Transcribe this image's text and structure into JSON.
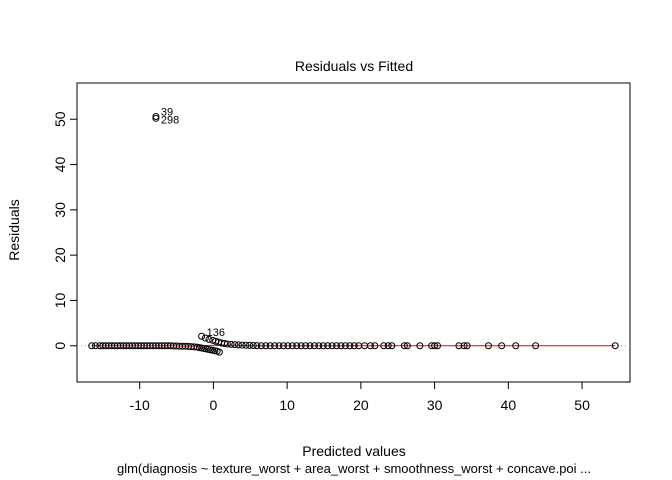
{
  "chart_data": {
    "type": "scatter",
    "title": "Residuals vs Fitted",
    "xlabel": "Predicted values",
    "ylabel": "Residuals",
    "subtitle": "glm(diagnosis ~ texture_worst + area_worst + smoothness_worst + concave.poi ...",
    "xlim": [
      -18.5,
      56.5
    ],
    "ylim": [
      -8,
      58
    ],
    "xticks": [
      -10,
      0,
      10,
      20,
      30,
      40,
      50
    ],
    "yticks": [
      0,
      10,
      20,
      30,
      40,
      50
    ],
    "grid": false,
    "reference_line": {
      "y": 0,
      "style": "dotted",
      "color": "#999999"
    },
    "smooth_color": "#ff0000",
    "point_color": "#000000",
    "labeled_points": [
      {
        "label": "39",
        "x": -7.8,
        "y": 50.6
      },
      {
        "label": "298",
        "x": -7.8,
        "y": 50.2
      },
      {
        "label": "136",
        "x": -1.6,
        "y": 2.1
      }
    ],
    "points": [
      {
        "x": -7.8,
        "y": 50.6
      },
      {
        "x": -7.8,
        "y": 50.2
      },
      {
        "x": -16.5,
        "y": 0.0
      },
      {
        "x": -16.0,
        "y": 0.0
      },
      {
        "x": -15.4,
        "y": 0.0
      },
      {
        "x": -15.0,
        "y": 0.0
      },
      {
        "x": -14.6,
        "y": 0.0
      },
      {
        "x": -14.2,
        "y": 0.0
      },
      {
        "x": -13.8,
        "y": 0.0
      },
      {
        "x": -13.4,
        "y": 0.0
      },
      {
        "x": -13.0,
        "y": 0.0
      },
      {
        "x": -12.6,
        "y": 0.0
      },
      {
        "x": -12.2,
        "y": 0.0
      },
      {
        "x": -11.8,
        "y": 0.0
      },
      {
        "x": -11.4,
        "y": 0.0
      },
      {
        "x": -11.0,
        "y": 0.0
      },
      {
        "x": -10.6,
        "y": 0.0
      },
      {
        "x": -10.2,
        "y": 0.0
      },
      {
        "x": -9.8,
        "y": 0.0
      },
      {
        "x": -9.4,
        "y": 0.0
      },
      {
        "x": -9.0,
        "y": 0.0
      },
      {
        "x": -8.6,
        "y": 0.0
      },
      {
        "x": -8.2,
        "y": 0.0
      },
      {
        "x": -7.8,
        "y": 0.0
      },
      {
        "x": -7.4,
        "y": 0.0
      },
      {
        "x": -7.0,
        "y": 0.0
      },
      {
        "x": -6.6,
        "y": 0.0
      },
      {
        "x": -6.2,
        "y": 0.0
      },
      {
        "x": -5.8,
        "y": 0.0
      },
      {
        "x": -5.4,
        "y": -0.05
      },
      {
        "x": -5.0,
        "y": -0.05
      },
      {
        "x": -4.6,
        "y": -0.1
      },
      {
        "x": -4.2,
        "y": -0.1
      },
      {
        "x": -3.8,
        "y": -0.1
      },
      {
        "x": -3.4,
        "y": -0.15
      },
      {
        "x": -3.0,
        "y": -0.2
      },
      {
        "x": -2.6,
        "y": -0.25
      },
      {
        "x": -2.2,
        "y": -0.3
      },
      {
        "x": -1.9,
        "y": -0.4
      },
      {
        "x": -1.6,
        "y": -0.5
      },
      {
        "x": -1.3,
        "y": -0.6
      },
      {
        "x": -1.0,
        "y": -0.7
      },
      {
        "x": -0.7,
        "y": -0.8
      },
      {
        "x": -0.4,
        "y": -0.9
      },
      {
        "x": -0.1,
        "y": -1.0
      },
      {
        "x": 0.2,
        "y": -1.1
      },
      {
        "x": 0.5,
        "y": -1.2
      },
      {
        "x": 0.8,
        "y": -1.4
      },
      {
        "x": -1.6,
        "y": 2.1
      },
      {
        "x": -1.1,
        "y": 1.7
      },
      {
        "x": -0.6,
        "y": 1.4
      },
      {
        "x": -0.1,
        "y": 1.2
      },
      {
        "x": 0.3,
        "y": 1.0
      },
      {
        "x": 0.7,
        "y": 0.8
      },
      {
        "x": 1.1,
        "y": 0.6
      },
      {
        "x": 1.5,
        "y": 0.5
      },
      {
        "x": 1.9,
        "y": 0.4
      },
      {
        "x": 2.4,
        "y": 0.3
      },
      {
        "x": 2.9,
        "y": 0.25
      },
      {
        "x": 3.4,
        "y": 0.2
      },
      {
        "x": 3.9,
        "y": 0.15
      },
      {
        "x": 4.4,
        "y": 0.1
      },
      {
        "x": 4.9,
        "y": 0.08
      },
      {
        "x": 5.4,
        "y": 0.05
      },
      {
        "x": 5.9,
        "y": 0.03
      },
      {
        "x": 6.5,
        "y": 0.0
      },
      {
        "x": 7.1,
        "y": 0.0
      },
      {
        "x": 7.7,
        "y": 0.0
      },
      {
        "x": 8.3,
        "y": 0.0
      },
      {
        "x": 8.9,
        "y": 0.0
      },
      {
        "x": 9.5,
        "y": 0.0
      },
      {
        "x": 10.1,
        "y": 0.0
      },
      {
        "x": 10.7,
        "y": 0.0
      },
      {
        "x": 11.3,
        "y": 0.0
      },
      {
        "x": 11.9,
        "y": 0.0
      },
      {
        "x": 12.5,
        "y": 0.0
      },
      {
        "x": 13.1,
        "y": 0.0
      },
      {
        "x": 13.7,
        "y": 0.0
      },
      {
        "x": 14.3,
        "y": 0.0
      },
      {
        "x": 14.9,
        "y": 0.0
      },
      {
        "x": 15.5,
        "y": 0.0
      },
      {
        "x": 16.1,
        "y": 0.0
      },
      {
        "x": 16.7,
        "y": 0.0
      },
      {
        "x": 17.3,
        "y": 0.0
      },
      {
        "x": 17.9,
        "y": 0.0
      },
      {
        "x": 18.5,
        "y": 0.0
      },
      {
        "x": 19.1,
        "y": 0.0
      },
      {
        "x": 19.7,
        "y": 0.0
      },
      {
        "x": 20.5,
        "y": 0.0
      },
      {
        "x": 21.3,
        "y": 0.0
      },
      {
        "x": 21.9,
        "y": 0.0
      },
      {
        "x": 23.1,
        "y": 0.0
      },
      {
        "x": 23.7,
        "y": 0.0
      },
      {
        "x": 24.2,
        "y": 0.0
      },
      {
        "x": 25.9,
        "y": 0.0
      },
      {
        "x": 26.3,
        "y": 0.0
      },
      {
        "x": 28.0,
        "y": 0.0
      },
      {
        "x": 29.6,
        "y": 0.0
      },
      {
        "x": 30.0,
        "y": 0.0
      },
      {
        "x": 30.4,
        "y": 0.0
      },
      {
        "x": 33.3,
        "y": 0.0
      },
      {
        "x": 34.0,
        "y": 0.0
      },
      {
        "x": 34.4,
        "y": 0.0
      },
      {
        "x": 37.3,
        "y": 0.0
      },
      {
        "x": 39.1,
        "y": 0.0
      },
      {
        "x": 41.0,
        "y": 0.0
      },
      {
        "x": 43.7,
        "y": 0.0
      },
      {
        "x": 54.5,
        "y": 0.0
      }
    ],
    "smooth_line": [
      {
        "x": -16.5,
        "y": 0.0
      },
      {
        "x": -6.0,
        "y": 0.0
      },
      {
        "x": -3.0,
        "y": -0.1
      },
      {
        "x": -1.0,
        "y": 0.05
      },
      {
        "x": 1.0,
        "y": 0.15
      },
      {
        "x": 3.0,
        "y": 0.1
      },
      {
        "x": 6.0,
        "y": 0.0
      },
      {
        "x": 54.5,
        "y": 0.0
      }
    ]
  }
}
